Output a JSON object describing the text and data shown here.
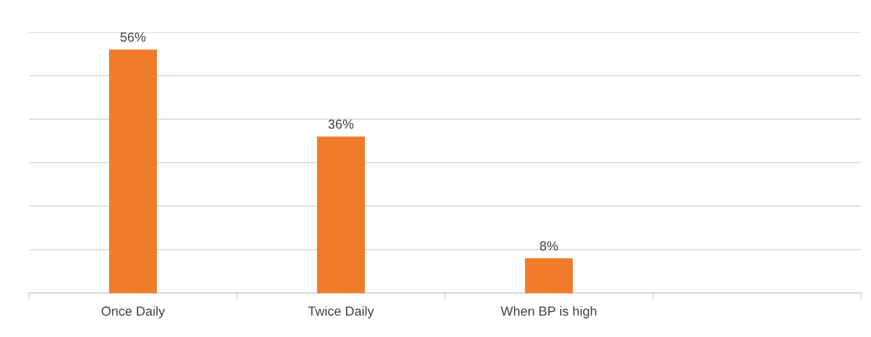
{
  "chart_data": {
    "type": "bar",
    "categories": [
      "Once Daily",
      "Twice Daily",
      "When BP is high",
      null
    ],
    "values": [
      56,
      36,
      8,
      null
    ],
    "value_labels": [
      "56%",
      "36%",
      "8%",
      null
    ],
    "color": "#f07b2a",
    "ylim": [
      0,
      60
    ],
    "yticks": [
      {
        "value": 0,
        "label": null
      },
      {
        "value": 10,
        "label": null
      },
      {
        "value": 20,
        "label": null
      },
      {
        "value": 30,
        "label": null
      },
      {
        "value": 40,
        "label": null
      },
      {
        "value": 50,
        "label": null
      },
      {
        "value": 60,
        "label": null
      }
    ],
    "grid": "y",
    "tick_labels": "x"
  }
}
